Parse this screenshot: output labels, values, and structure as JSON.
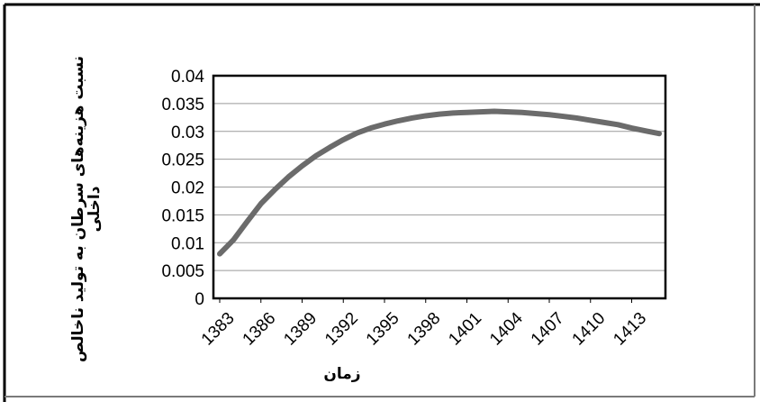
{
  "chart_data": {
    "type": "line",
    "xlabel": "زمان",
    "ylabel_lines": [
      "نسبت هزینه‌های سرطان به تولید ناخالص",
      "داخلی"
    ],
    "x": [
      1383,
      1384,
      1385,
      1386,
      1387,
      1388,
      1389,
      1390,
      1391,
      1392,
      1393,
      1394,
      1395,
      1396,
      1397,
      1398,
      1399,
      1400,
      1401,
      1402,
      1403,
      1404,
      1405,
      1406,
      1407,
      1408,
      1409,
      1410,
      1411,
      1412,
      1413,
      1414,
      1415
    ],
    "x_tick_labels": [
      "1383",
      "1386",
      "1389",
      "1392",
      "1395",
      "1398",
      "1401",
      "1404",
      "1407",
      "1410",
      "1413"
    ],
    "y_tick_labels": [
      "0",
      "0.005",
      "0.01",
      "0.015",
      "0.02",
      "0.025",
      "0.03",
      "0.035",
      "0.04"
    ],
    "series": [
      {
        "color": "#6b6b6b",
        "values": [
          0.008,
          0.0105,
          0.0138,
          0.017,
          0.0195,
          0.0218,
          0.0238,
          0.0256,
          0.0271,
          0.0285,
          0.0297,
          0.0306,
          0.0313,
          0.0319,
          0.0324,
          0.0328,
          0.0331,
          0.0333,
          0.0334,
          0.0335,
          0.0336,
          0.0335,
          0.0334,
          0.0332,
          0.033,
          0.0327,
          0.0324,
          0.032,
          0.0316,
          0.0312,
          0.0306,
          0.0301,
          0.0296
        ]
      }
    ],
    "ylim": [
      0,
      0.04
    ],
    "grid": true,
    "legend": "none"
  }
}
